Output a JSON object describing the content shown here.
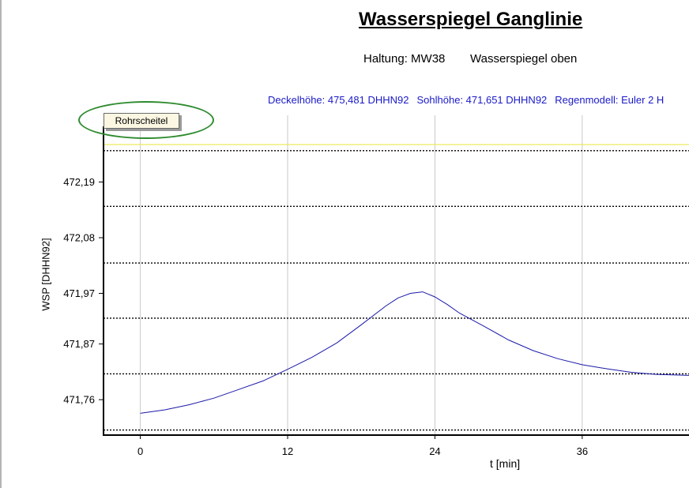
{
  "chart_data": {
    "type": "line",
    "title": "Wasserspiegel Ganglinie",
    "subtitle_left": "Haltung: MW38",
    "subtitle_right": "Wasserspiegel oben",
    "info": [
      "Deckelhöhe: 475,481 DHHN92",
      "Sohlhöhe: 471,651 DHHN92",
      "Regenmodell: Euler 2 H"
    ],
    "xlabel": "t  [min]",
    "ylabel": "WSP  [DHHN92]",
    "xlim": [
      -3,
      44.7
    ],
    "ylim": [
      471.69,
      472.3
    ],
    "x_ticks": [
      0,
      12,
      24,
      36
    ],
    "x_tick_labels": [
      "0",
      "12",
      "24",
      "36"
    ],
    "y_ticks": [
      471.76,
      471.87,
      471.97,
      472.08,
      472.19
    ],
    "y_tick_labels": [
      "471,76",
      "471,87",
      "471,97",
      "472,08",
      "472,19"
    ],
    "reference_line": {
      "name": "Rohrscheitel",
      "y": 472.264,
      "color": "#e8e84a"
    },
    "dotted_levels": [
      471.7,
      471.811,
      471.921,
      472.03,
      472.142,
      472.252
    ],
    "grid": true,
    "series": [
      {
        "name": "",
        "color": "#1a1aa8",
        "points": [
          [
            0,
            471.733
          ],
          [
            2,
            471.74
          ],
          [
            4,
            471.75
          ],
          [
            6,
            471.763
          ],
          [
            8,
            471.78
          ],
          [
            10,
            471.797
          ],
          [
            12,
            471.82
          ],
          [
            14,
            471.844
          ],
          [
            16,
            471.872
          ],
          [
            18,
            471.908
          ],
          [
            20,
            471.945
          ],
          [
            21,
            471.961
          ],
          [
            22,
            471.97
          ],
          [
            23,
            471.973
          ],
          [
            24,
            471.963
          ],
          [
            25,
            471.948
          ],
          [
            26,
            471.931
          ],
          [
            28,
            471.905
          ],
          [
            30,
            471.878
          ],
          [
            32,
            471.857
          ],
          [
            34,
            471.841
          ],
          [
            36,
            471.829
          ],
          [
            38,
            471.821
          ],
          [
            40,
            471.814
          ],
          [
            42,
            471.81
          ],
          [
            44.7,
            471.808
          ]
        ]
      }
    ]
  }
}
